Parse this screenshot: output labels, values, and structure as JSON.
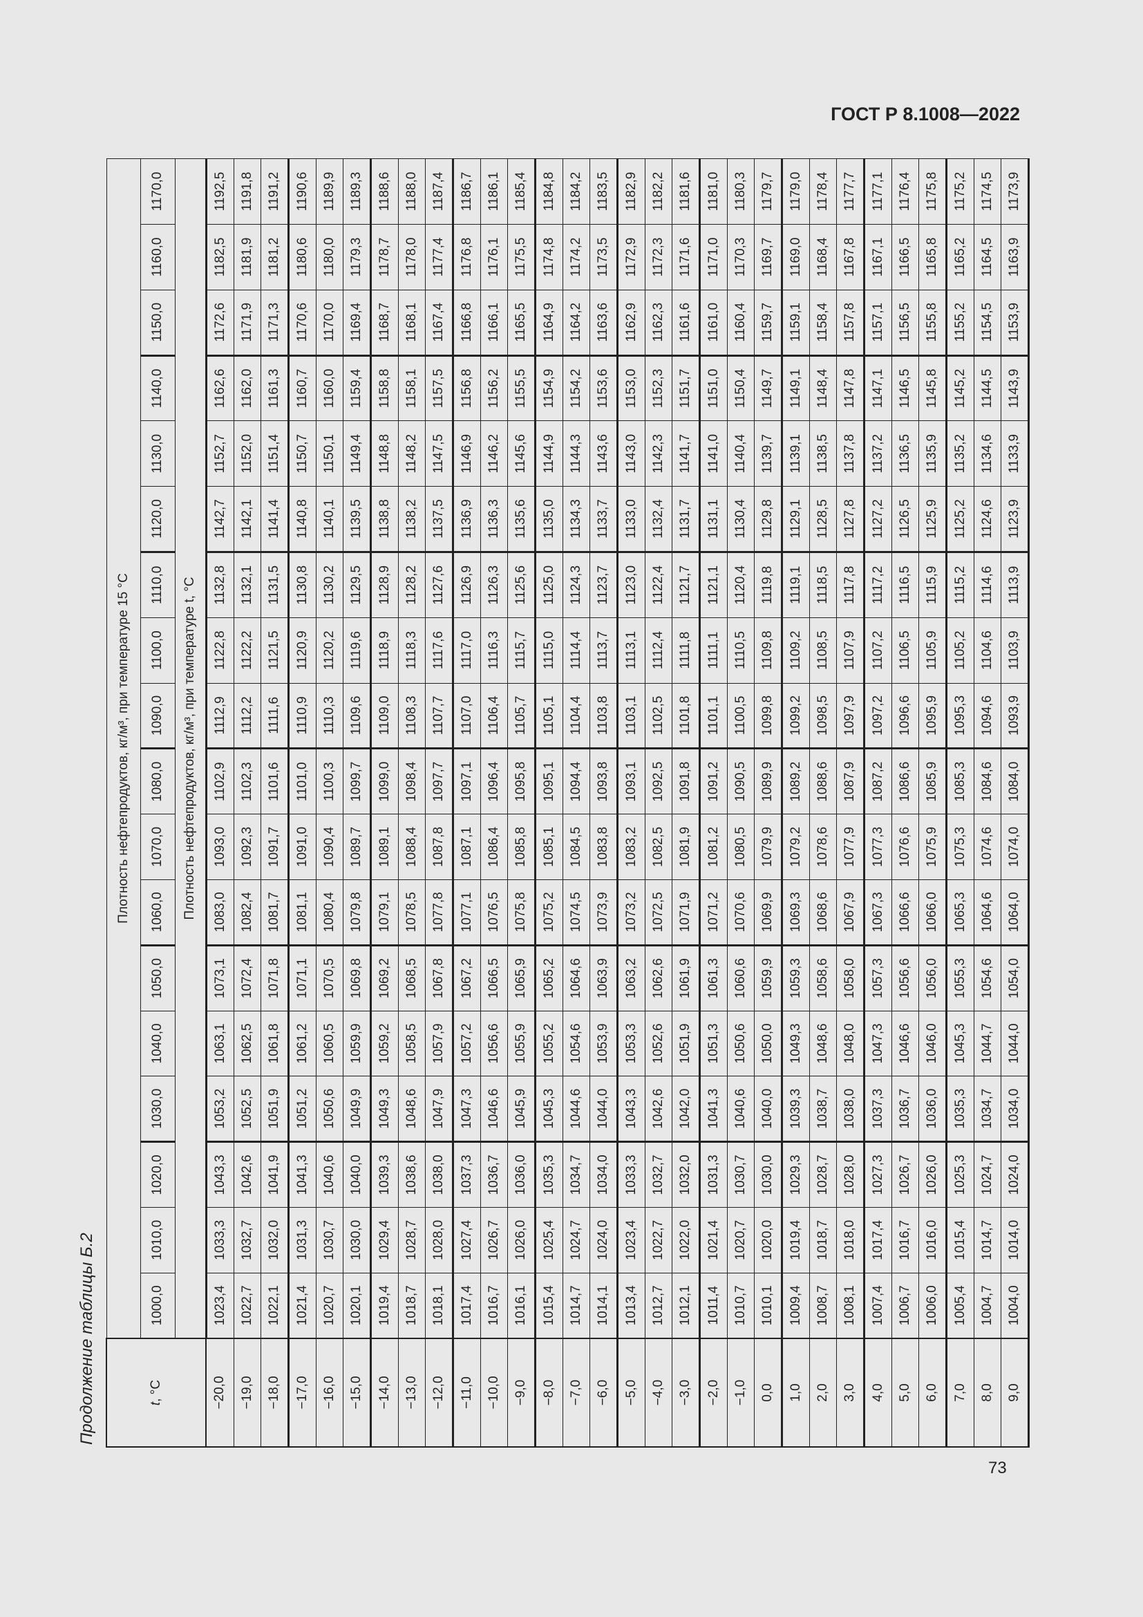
{
  "header": {
    "standard": "ГОСТ Р 8.1008—2022"
  },
  "caption": "Продолжение таблицы Б.2",
  "page_number": "73",
  "table": {
    "t_header": "t, °C",
    "group_title": "Плотность нефтепродуктов, кг/м³, при температуре 15 °C",
    "subtitle": "Плотность нефтепродуктов, кг/м³, при температуре t, °C",
    "columns": [
      "1000,0",
      "1010,0",
      "1020,0",
      "1030,0",
      "1040,0",
      "1050,0",
      "1060,0",
      "1070,0",
      "1080,0",
      "1090,0",
      "1100,0",
      "1110,0",
      "1120,0",
      "1130,0",
      "1140,0",
      "1150,0",
      "1160,0",
      "1170,0"
    ],
    "rows": [
      {
        "t": "−20,0",
        "v": [
          "1023,4",
          "1033,3",
          "1043,3",
          "1053,2",
          "1063,1",
          "1073,1",
          "1083,0",
          "1093,0",
          "1102,9",
          "1112,9",
          "1122,8",
          "1132,8",
          "1142,7",
          "1152,7",
          "1162,6",
          "1172,6",
          "1182,5",
          "1192,5"
        ]
      },
      {
        "t": "−19,0",
        "v": [
          "1022,7",
          "1032,7",
          "1042,6",
          "1052,5",
          "1062,5",
          "1072,4",
          "1082,4",
          "1092,3",
          "1102,3",
          "1112,2",
          "1122,2",
          "1132,1",
          "1142,1",
          "1152,0",
          "1162,0",
          "1171,9",
          "1181,9",
          "1191,8"
        ]
      },
      {
        "t": "−18,0",
        "v": [
          "1022,1",
          "1032,0",
          "1041,9",
          "1051,9",
          "1061,8",
          "1071,8",
          "1081,7",
          "1091,7",
          "1101,6",
          "1111,6",
          "1121,5",
          "1131,5",
          "1141,4",
          "1151,4",
          "1161,3",
          "1171,3",
          "1181,2",
          "1191,2"
        ]
      },
      {
        "t": "−17,0",
        "v": [
          "1021,4",
          "1031,3",
          "1041,3",
          "1051,2",
          "1061,2",
          "1071,1",
          "1081,1",
          "1091,0",
          "1101,0",
          "1110,9",
          "1120,9",
          "1130,8",
          "1140,8",
          "1150,7",
          "1160,7",
          "1170,6",
          "1180,6",
          "1190,6"
        ]
      },
      {
        "t": "−16,0",
        "v": [
          "1020,7",
          "1030,7",
          "1040,6",
          "1050,6",
          "1060,5",
          "1070,5",
          "1080,4",
          "1090,4",
          "1100,3",
          "1110,3",
          "1120,2",
          "1130,2",
          "1140,1",
          "1150,1",
          "1160,0",
          "1170,0",
          "1180,0",
          "1189,9"
        ]
      },
      {
        "t": "−15,0",
        "v": [
          "1020,1",
          "1030,0",
          "1040,0",
          "1049,9",
          "1059,9",
          "1069,8",
          "1079,8",
          "1089,7",
          "1099,7",
          "1109,6",
          "1119,6",
          "1129,5",
          "1139,5",
          "1149,4",
          "1159,4",
          "1169,4",
          "1179,3",
          "1189,3"
        ]
      },
      {
        "t": "−14,0",
        "v": [
          "1019,4",
          "1029,4",
          "1039,3",
          "1049,3",
          "1059,2",
          "1069,2",
          "1079,1",
          "1089,1",
          "1099,0",
          "1109,0",
          "1118,9",
          "1128,9",
          "1138,8",
          "1148,8",
          "1158,8",
          "1168,7",
          "1178,7",
          "1188,6"
        ]
      },
      {
        "t": "−13,0",
        "v": [
          "1018,7",
          "1028,7",
          "1038,6",
          "1048,6",
          "1058,5",
          "1068,5",
          "1078,5",
          "1088,4",
          "1098,4",
          "1108,3",
          "1118,3",
          "1128,2",
          "1138,2",
          "1148,2",
          "1158,1",
          "1168,1",
          "1178,0",
          "1188,0"
        ]
      },
      {
        "t": "−12,0",
        "v": [
          "1018,1",
          "1028,0",
          "1038,0",
          "1047,9",
          "1057,9",
          "1067,8",
          "1077,8",
          "1087,8",
          "1097,7",
          "1107,7",
          "1117,6",
          "1127,6",
          "1137,5",
          "1147,5",
          "1157,5",
          "1167,4",
          "1177,4",
          "1187,4"
        ]
      },
      {
        "t": "−11,0",
        "v": [
          "1017,4",
          "1027,4",
          "1037,3",
          "1047,3",
          "1057,2",
          "1067,2",
          "1077,1",
          "1087,1",
          "1097,1",
          "1107,0",
          "1117,0",
          "1126,9",
          "1136,9",
          "1146,9",
          "1156,8",
          "1166,8",
          "1176,8",
          "1186,7"
        ]
      },
      {
        "t": "−10,0",
        "v": [
          "1016,7",
          "1026,7",
          "1036,7",
          "1046,6",
          "1056,6",
          "1066,5",
          "1076,5",
          "1086,4",
          "1096,4",
          "1106,4",
          "1116,3",
          "1126,3",
          "1136,3",
          "1146,2",
          "1156,2",
          "1166,1",
          "1176,1",
          "1186,1"
        ]
      },
      {
        "t": "−9,0",
        "v": [
          "1016,1",
          "1026,0",
          "1036,0",
          "1045,9",
          "1055,9",
          "1065,9",
          "1075,8",
          "1085,8",
          "1095,8",
          "1105,7",
          "1115,7",
          "1125,6",
          "1135,6",
          "1145,6",
          "1155,5",
          "1165,5",
          "1175,5",
          "1185,4"
        ]
      },
      {
        "t": "−8,0",
        "v": [
          "1015,4",
          "1025,4",
          "1035,3",
          "1045,3",
          "1055,2",
          "1065,2",
          "1075,2",
          "1085,1",
          "1095,1",
          "1105,1",
          "1115,0",
          "1125,0",
          "1135,0",
          "1144,9",
          "1154,9",
          "1164,9",
          "1174,8",
          "1184,8"
        ]
      },
      {
        "t": "−7,0",
        "v": [
          "1014,7",
          "1024,7",
          "1034,7",
          "1044,6",
          "1054,6",
          "1064,6",
          "1074,5",
          "1084,5",
          "1094,4",
          "1104,4",
          "1114,4",
          "1124,3",
          "1134,3",
          "1144,3",
          "1154,2",
          "1164,2",
          "1174,2",
          "1184,2"
        ]
      },
      {
        "t": "−6,0",
        "v": [
          "1014,1",
          "1024,0",
          "1034,0",
          "1044,0",
          "1053,9",
          "1063,9",
          "1073,9",
          "1083,8",
          "1093,8",
          "1103,8",
          "1113,7",
          "1123,7",
          "1133,7",
          "1143,6",
          "1153,6",
          "1163,6",
          "1173,5",
          "1183,5"
        ]
      },
      {
        "t": "−5,0",
        "v": [
          "1013,4",
          "1023,4",
          "1033,3",
          "1043,3",
          "1053,3",
          "1063,2",
          "1073,2",
          "1083,2",
          "1093,1",
          "1103,1",
          "1113,1",
          "1123,0",
          "1133,0",
          "1143,0",
          "1153,0",
          "1162,9",
          "1172,9",
          "1182,9"
        ]
      },
      {
        "t": "−4,0",
        "v": [
          "1012,7",
          "1022,7",
          "1032,7",
          "1042,6",
          "1052,6",
          "1062,6",
          "1072,5",
          "1082,5",
          "1092,5",
          "1102,5",
          "1112,4",
          "1122,4",
          "1132,4",
          "1142,3",
          "1152,3",
          "1162,3",
          "1172,3",
          "1182,2"
        ]
      },
      {
        "t": "−3,0",
        "v": [
          "1012,1",
          "1022,0",
          "1032,0",
          "1042,0",
          "1051,9",
          "1061,9",
          "1071,9",
          "1081,9",
          "1091,8",
          "1101,8",
          "1111,8",
          "1121,7",
          "1131,7",
          "1141,7",
          "1151,7",
          "1161,6",
          "1171,6",
          "1181,6"
        ]
      },
      {
        "t": "−2,0",
        "v": [
          "1011,4",
          "1021,4",
          "1031,3",
          "1041,3",
          "1051,3",
          "1061,3",
          "1071,2",
          "1081,2",
          "1091,2",
          "1101,1",
          "1111,1",
          "1121,1",
          "1131,1",
          "1141,0",
          "1151,0",
          "1161,0",
          "1171,0",
          "1181,0"
        ]
      },
      {
        "t": "−1,0",
        "v": [
          "1010,7",
          "1020,7",
          "1030,7",
          "1040,6",
          "1050,6",
          "1060,6",
          "1070,6",
          "1080,5",
          "1090,5",
          "1100,5",
          "1110,5",
          "1120,4",
          "1130,4",
          "1140,4",
          "1150,4",
          "1160,4",
          "1170,3",
          "1180,3"
        ]
      },
      {
        "t": "0,0",
        "v": [
          "1010,1",
          "1020,0",
          "1030,0",
          "1040,0",
          "1050,0",
          "1059,9",
          "1069,9",
          "1079,9",
          "1089,9",
          "1099,8",
          "1109,8",
          "1119,8",
          "1129,8",
          "1139,7",
          "1149,7",
          "1159,7",
          "1169,7",
          "1179,7"
        ]
      },
      {
        "t": "1,0",
        "v": [
          "1009,4",
          "1019,4",
          "1029,3",
          "1039,3",
          "1049,3",
          "1059,3",
          "1069,3",
          "1079,2",
          "1089,2",
          "1099,2",
          "1109,2",
          "1119,1",
          "1129,1",
          "1139,1",
          "1149,1",
          "1159,1",
          "1169,0",
          "1179,0"
        ]
      },
      {
        "t": "2,0",
        "v": [
          "1008,7",
          "1018,7",
          "1028,7",
          "1038,7",
          "1048,6",
          "1058,6",
          "1068,6",
          "1078,6",
          "1088,6",
          "1098,5",
          "1108,5",
          "1118,5",
          "1128,5",
          "1138,5",
          "1148,4",
          "1158,4",
          "1168,4",
          "1178,4"
        ]
      },
      {
        "t": "3,0",
        "v": [
          "1008,1",
          "1018,0",
          "1028,0",
          "1038,0",
          "1048,0",
          "1058,0",
          "1067,9",
          "1077,9",
          "1087,9",
          "1097,9",
          "1107,9",
          "1117,8",
          "1127,8",
          "1137,8",
          "1147,8",
          "1157,8",
          "1167,8",
          "1177,7"
        ]
      },
      {
        "t": "4,0",
        "v": [
          "1007,4",
          "1017,4",
          "1027,3",
          "1037,3",
          "1047,3",
          "1057,3",
          "1067,3",
          "1077,3",
          "1087,2",
          "1097,2",
          "1107,2",
          "1117,2",
          "1127,2",
          "1137,2",
          "1147,1",
          "1157,1",
          "1167,1",
          "1177,1"
        ]
      },
      {
        "t": "5,0",
        "v": [
          "1006,7",
          "1016,7",
          "1026,7",
          "1036,7",
          "1046,6",
          "1056,6",
          "1066,6",
          "1076,6",
          "1086,6",
          "1096,6",
          "1106,5",
          "1116,5",
          "1126,5",
          "1136,5",
          "1146,5",
          "1156,5",
          "1166,5",
          "1176,4"
        ]
      },
      {
        "t": "6,0",
        "v": [
          "1006,0",
          "1016,0",
          "1026,0",
          "1036,0",
          "1046,0",
          "1056,0",
          "1066,0",
          "1075,9",
          "1085,9",
          "1095,9",
          "1105,9",
          "1115,9",
          "1125,9",
          "1135,9",
          "1145,8",
          "1155,8",
          "1165,8",
          "1175,8"
        ]
      },
      {
        "t": "7,0",
        "v": [
          "1005,4",
          "1015,4",
          "1025,3",
          "1035,3",
          "1045,3",
          "1055,3",
          "1065,3",
          "1075,3",
          "1085,3",
          "1095,3",
          "1105,2",
          "1115,2",
          "1125,2",
          "1135,2",
          "1145,2",
          "1155,2",
          "1165,2",
          "1175,2"
        ]
      },
      {
        "t": "8,0",
        "v": [
          "1004,7",
          "1014,7",
          "1024,7",
          "1034,7",
          "1044,7",
          "1054,6",
          "1064,6",
          "1074,6",
          "1084,6",
          "1094,6",
          "1104,6",
          "1114,6",
          "1124,6",
          "1134,6",
          "1144,5",
          "1154,5",
          "1164,5",
          "1174,5"
        ]
      },
      {
        "t": "9,0",
        "v": [
          "1004,0",
          "1014,0",
          "1024,0",
          "1034,0",
          "1044,0",
          "1054,0",
          "1064,0",
          "1074,0",
          "1084,0",
          "1093,9",
          "1103,9",
          "1113,9",
          "1123,9",
          "1133,9",
          "1143,9",
          "1153,9",
          "1163,9",
          "1173,9"
        ]
      }
    ]
  }
}
